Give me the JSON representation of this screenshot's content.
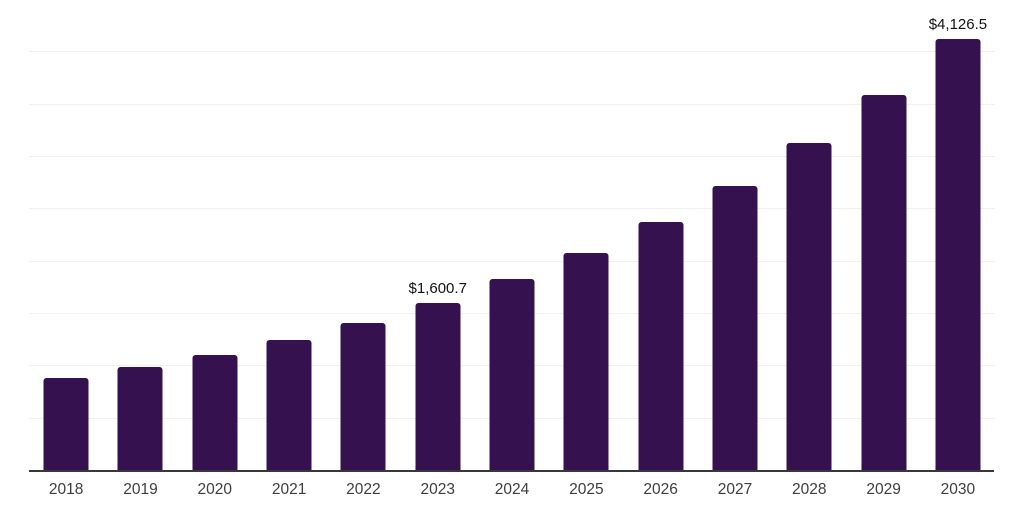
{
  "chart_data": {
    "type": "bar",
    "title": "",
    "xlabel": "",
    "ylabel": "",
    "categories": [
      "2018",
      "2019",
      "2020",
      "2021",
      "2022",
      "2023",
      "2024",
      "2025",
      "2026",
      "2027",
      "2028",
      "2029",
      "2030"
    ],
    "values": [
      885,
      990,
      1110,
      1250,
      1415,
      1600.7,
      1830,
      2085,
      2380,
      2720,
      3135,
      3590,
      4126.5
    ],
    "data_labels": {
      "2023": "$1,600.7",
      "2030": "$4,126.5"
    },
    "ylim": [
      0,
      4500
    ],
    "gridline_step": 500,
    "grid": "horizontal-only",
    "legend": "none",
    "colors": {
      "bar": "#351150",
      "gridline": "#f0f0f0",
      "axis_line": "#383838",
      "tick_label": "#3d3d3d",
      "data_label": "#111111",
      "background": "#ffffff"
    }
  }
}
